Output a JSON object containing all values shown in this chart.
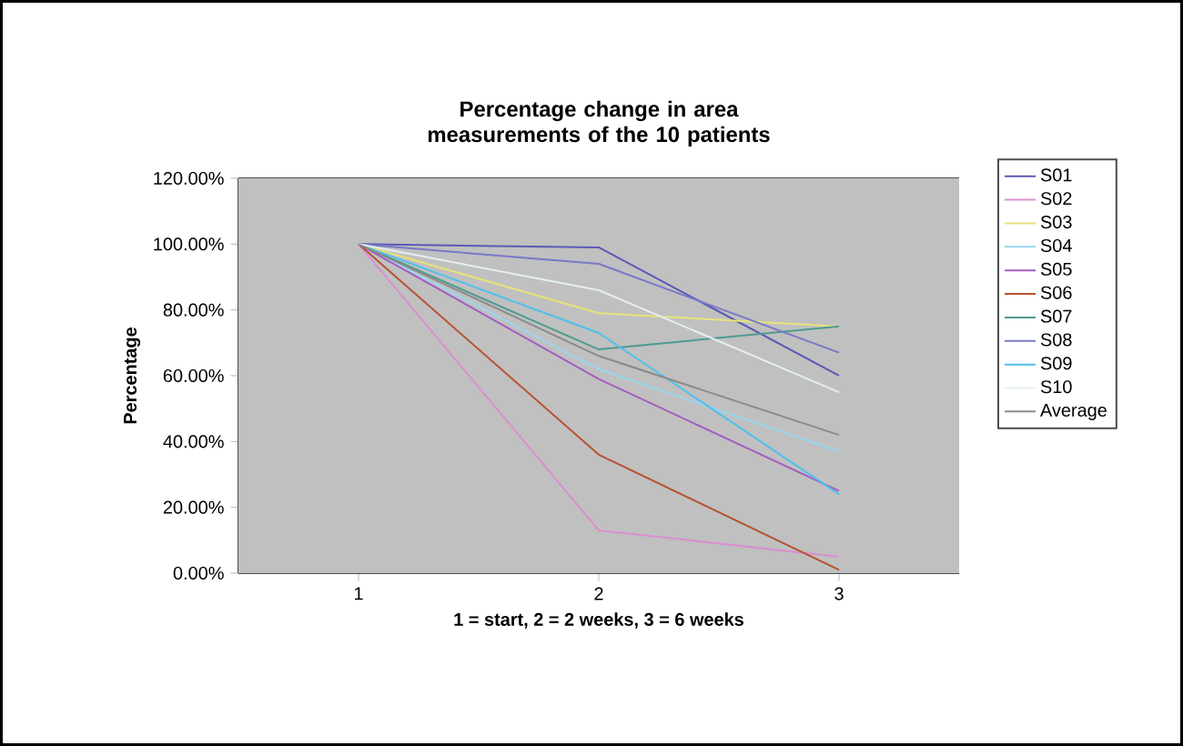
{
  "chart_data": {
    "type": "line",
    "title": "Percentage change in area measurements of the 10 patients",
    "xlabel": "1 = start, 2 = 2 weeks, 3 = 6 weeks",
    "ylabel": "Percentage",
    "categories": [
      "1",
      "2",
      "3"
    ],
    "ylim": [
      0,
      120
    ],
    "yticks": [
      {
        "value": 0,
        "label": "0.00%"
      },
      {
        "value": 20,
        "label": "20.00%"
      },
      {
        "value": 40,
        "label": "40.00%"
      },
      {
        "value": 60,
        "label": "60.00%"
      },
      {
        "value": 80,
        "label": "80.00%"
      },
      {
        "value": 100,
        "label": "100.00%"
      },
      {
        "value": 120,
        "label": "120.00%"
      }
    ],
    "grid": "y",
    "legend": "right",
    "series": [
      {
        "name": "S01",
        "color": "#5a5ab4",
        "values": [
          100,
          99,
          60
        ]
      },
      {
        "name": "S02",
        "color": "#d98fd0",
        "values": [
          100,
          13,
          5
        ]
      },
      {
        "name": "S03",
        "color": "#e8e27a",
        "values": [
          100,
          79,
          75
        ]
      },
      {
        "name": "S04",
        "color": "#99d6f0",
        "values": [
          100,
          62,
          37
        ]
      },
      {
        "name": "S05",
        "color": "#a45cc0",
        "values": [
          100,
          59,
          25
        ]
      },
      {
        "name": "S06",
        "color": "#b5532f",
        "values": [
          100,
          36,
          1
        ]
      },
      {
        "name": "S07",
        "color": "#4f9a90",
        "values": [
          100,
          68,
          75
        ]
      },
      {
        "name": "S08",
        "color": "#7878c8",
        "values": [
          100,
          94,
          67
        ]
      },
      {
        "name": "S09",
        "color": "#4cc0ee",
        "values": [
          100,
          73,
          24
        ]
      },
      {
        "name": "S10",
        "color": "#e4eef4",
        "values": [
          100,
          86,
          55
        ]
      },
      {
        "name": "Average",
        "color": "#8a8a8a",
        "values": [
          100,
          66,
          42
        ]
      }
    ]
  }
}
